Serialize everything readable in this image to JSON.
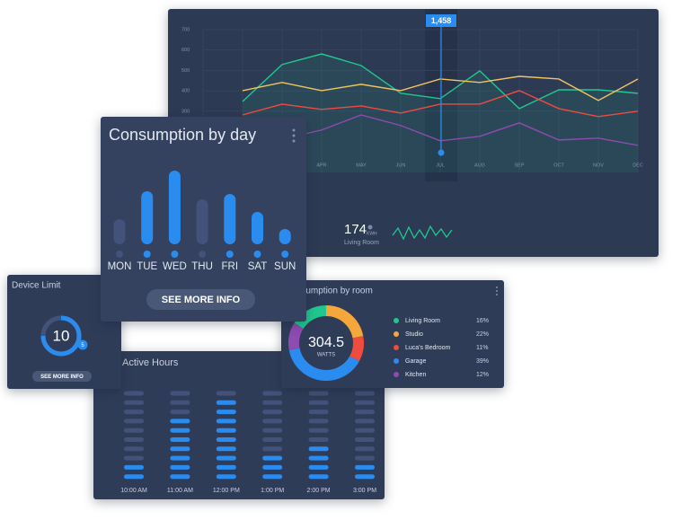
{
  "chart_data": [
    {
      "type": "line",
      "categories": [
        null,
        null,
        null,
        "APR",
        "MAY",
        "JUN",
        "JUL",
        "AUG",
        "SEP",
        "OCT",
        "NOV",
        "DEC"
      ],
      "ylim": [
        0,
        700
      ],
      "yticks": [
        300,
        400,
        500,
        600,
        700
      ],
      "grid": true,
      "highlight_label": "1,458",
      "series": [
        {
          "color": "#1fc98e",
          "values": [
            null,
            348,
            529,
            581,
            524,
            388,
            362,
            498,
            313,
            405,
            405,
            388
          ]
        },
        {
          "color": "#f2c45e",
          "values": [
            null,
            401,
            441,
            401,
            432,
            401,
            458,
            441,
            471,
            458,
            353,
            458
          ]
        },
        {
          "color": "#ef4b3f",
          "values": [
            null,
            282,
            335,
            309,
            326,
            291,
            335,
            335,
            401,
            313,
            274,
            300
          ]
        },
        {
          "color": "#8e4bb0",
          "values": [
            null,
            164,
            164,
            208,
            282,
            230,
            155,
            177,
            243,
            159,
            168,
            133
          ]
        }
      ]
    },
    {
      "type": "bar",
      "title": "Consumption by day",
      "categories": [
        "MON",
        "TUE",
        "WED",
        "THU",
        "FRI",
        "SAT",
        "SUN"
      ],
      "values": [
        28,
        59,
        82,
        50,
        56,
        36,
        17
      ],
      "colors": [
        "#43527a",
        "#2b8cf0",
        "#2b8cf0",
        "#43527a",
        "#2b8cf0",
        "#2b8cf0",
        "#2b8cf0"
      ],
      "button": "SEE MORE INFO"
    },
    {
      "type": "pie",
      "title": "Consumption by room",
      "center_value": 304.5,
      "center_label": "WATTS",
      "categories": [
        "Living Room",
        "Studio",
        "Luca's Bedroom",
        "Garage",
        "Kitchen"
      ],
      "values": [
        16,
        22,
        11,
        39,
        12
      ],
      "value_labels": [
        "16%",
        "22%",
        "11%",
        "39%",
        "12%"
      ],
      "colors": [
        "#1fc98e",
        "#f5a73b",
        "#ef4b3f",
        "#2b8cf0",
        "#8e4bb0"
      ]
    }
  ],
  "living_room_summary": {
    "value": 174,
    "unit": "KWH",
    "label": "Living Room"
  },
  "device_limit": {
    "title": "Device Limit",
    "value": 10,
    "badge": 5,
    "button": "SEE MORE INFO"
  },
  "active_hours": {
    "title": "Active Hours",
    "times": [
      "10:00 AM",
      "11:00 AM",
      "12:00 PM",
      "1:00 PM",
      "2:00 PM",
      "3:00 PM"
    ],
    "slots": 10,
    "active_slots": [
      2,
      7,
      9,
      3,
      4,
      2
    ]
  }
}
